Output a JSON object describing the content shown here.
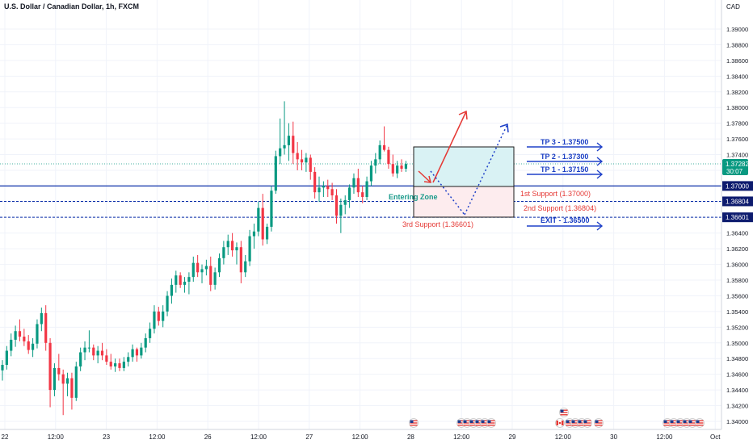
{
  "header": {
    "title": "U.S. Dollar / Canadian Dollar, 1h, FXCM"
  },
  "colors": {
    "up": "#089981",
    "down": "#f23645",
    "level_line": "#0d2fa8",
    "level_badge": "#0d1b6e",
    "price_badge": "#089981",
    "zone_fill": "#d9f2f4",
    "zone_fill_low": "#fdecee",
    "arrow_red": "#e53935",
    "arrow_blue": "#1e40c8",
    "text_green": "#1a9a8a",
    "text_red": "#e53935",
    "text_blue": "#1b3fc4"
  },
  "chart_data": {
    "type": "candlestick",
    "title": "U.S. Dollar / Canadian Dollar, 1h, FXCM",
    "y_axis_label": "CAD",
    "ylim": [
      1.3385,
      1.3925
    ],
    "y_ticks": [
      "1.39000",
      "1.38800",
      "1.38600",
      "1.38400",
      "1.38200",
      "1.38000",
      "1.37800",
      "1.37600",
      "1.37400",
      "1.37200",
      "1.37000",
      "1.36800",
      "1.36600",
      "1.36400",
      "1.36200",
      "1.36000",
      "1.35800",
      "1.35600",
      "1.35400",
      "1.35200",
      "1.35000",
      "1.34800",
      "1.34600",
      "1.34400",
      "1.34200",
      "1.34000"
    ],
    "x_ticks": [
      "22",
      "12:00",
      "23",
      "12:00",
      "26",
      "12:00",
      "27",
      "12:00",
      "28",
      "12:00",
      "29",
      "12:00",
      "30",
      "12:00",
      "Oct"
    ],
    "current_price": {
      "value": "1.37282",
      "countdown": "30:07"
    },
    "levels": [
      {
        "value": 1.37,
        "label": "1.37000",
        "style": "solid"
      },
      {
        "value": 1.36804,
        "label": "1.36804",
        "style": "dashed"
      },
      {
        "value": 1.36601,
        "label": "1.36601",
        "style": "dashed"
      }
    ],
    "annotations": {
      "entering_zone": "Entering Zone",
      "support_1": "1st Support (1.37000)",
      "support_2": "2nd Support (1.36804)",
      "support_3": "3rd Support (1.36601)",
      "tp3": "TP 3 - 1.37500",
      "tp2": "TP 2 - 1.37300",
      "tp1": "TP 1 - 1.37150",
      "exit": "EXIT - 1.36500"
    },
    "candles": [
      [
        1.3465,
        1.3478,
        1.3452,
        1.3472
      ],
      [
        1.3472,
        1.3496,
        1.3466,
        1.349
      ],
      [
        1.349,
        1.3512,
        1.3483,
        1.3504
      ],
      [
        1.3504,
        1.3522,
        1.3495,
        1.3515
      ],
      [
        1.3515,
        1.353,
        1.3502,
        1.3508
      ],
      [
        1.3508,
        1.3518,
        1.3496,
        1.3502
      ],
      [
        1.3502,
        1.351,
        1.3486,
        1.3491
      ],
      [
        1.3491,
        1.3506,
        1.3482,
        1.3499
      ],
      [
        1.3499,
        1.353,
        1.3493,
        1.3524
      ],
      [
        1.3524,
        1.3545,
        1.3515,
        1.3538
      ],
      [
        1.3538,
        1.3548,
        1.349,
        1.35
      ],
      [
        1.35,
        1.3506,
        1.3418,
        1.344
      ],
      [
        1.344,
        1.3474,
        1.3432,
        1.3468
      ],
      [
        1.3468,
        1.3486,
        1.3452,
        1.346
      ],
      [
        1.346,
        1.3466,
        1.3408,
        1.3448
      ],
      [
        1.3448,
        1.3462,
        1.3432,
        1.3455
      ],
      [
        1.3455,
        1.3462,
        1.3415,
        1.343
      ],
      [
        1.343,
        1.3476,
        1.3426,
        1.347
      ],
      [
        1.347,
        1.3494,
        1.3464,
        1.3488
      ],
      [
        1.3488,
        1.3502,
        1.3478,
        1.3494
      ],
      [
        1.3494,
        1.3516,
        1.3488,
        1.3494
      ],
      [
        1.3494,
        1.3498,
        1.3478,
        1.3484
      ],
      [
        1.3484,
        1.3496,
        1.3474,
        1.349
      ],
      [
        1.349,
        1.35,
        1.3478,
        1.3484
      ],
      [
        1.3484,
        1.3492,
        1.3472,
        1.3476
      ],
      [
        1.3476,
        1.3486,
        1.3466,
        1.347
      ],
      [
        1.347,
        1.348,
        1.3463,
        1.3474
      ],
      [
        1.3474,
        1.348,
        1.3464,
        1.3468
      ],
      [
        1.3468,
        1.3482,
        1.3464,
        1.3476
      ],
      [
        1.3476,
        1.3488,
        1.347,
        1.3482
      ],
      [
        1.3482,
        1.3498,
        1.3476,
        1.3492
      ],
      [
        1.3492,
        1.3494,
        1.3476,
        1.3484
      ],
      [
        1.3484,
        1.35,
        1.348,
        1.3494
      ],
      [
        1.3494,
        1.3512,
        1.3488,
        1.3506
      ],
      [
        1.3506,
        1.3526,
        1.35,
        1.3518
      ],
      [
        1.3518,
        1.3548,
        1.3512,
        1.354
      ],
      [
        1.354,
        1.3546,
        1.3522,
        1.3528
      ],
      [
        1.3528,
        1.3548,
        1.352,
        1.354
      ],
      [
        1.354,
        1.3566,
        1.3534,
        1.356
      ],
      [
        1.356,
        1.3582,
        1.355,
        1.3574
      ],
      [
        1.3574,
        1.3592,
        1.3564,
        1.3586
      ],
      [
        1.3586,
        1.359,
        1.357,
        1.3574
      ],
      [
        1.3574,
        1.3584,
        1.3564,
        1.3578
      ],
      [
        1.3578,
        1.359,
        1.3562,
        1.3584
      ],
      [
        1.3584,
        1.361,
        1.3578,
        1.3602
      ],
      [
        1.3602,
        1.3612,
        1.3584,
        1.359
      ],
      [
        1.359,
        1.36,
        1.3576,
        1.3594
      ],
      [
        1.3594,
        1.3606,
        1.3586,
        1.3598
      ],
      [
        1.3598,
        1.361,
        1.3566,
        1.3574
      ],
      [
        1.3574,
        1.3596,
        1.3568,
        1.359
      ],
      [
        1.359,
        1.3614,
        1.3584,
        1.3608
      ],
      [
        1.3608,
        1.363,
        1.36,
        1.3622
      ],
      [
        1.3622,
        1.3638,
        1.3612,
        1.363
      ],
      [
        1.363,
        1.364,
        1.361,
        1.3618
      ],
      [
        1.3618,
        1.3628,
        1.36,
        1.3622
      ],
      [
        1.3622,
        1.363,
        1.3576,
        1.359
      ],
      [
        1.359,
        1.3612,
        1.3584,
        1.3604
      ],
      [
        1.3604,
        1.3644,
        1.3598,
        1.3636
      ],
      [
        1.3636,
        1.3652,
        1.362,
        1.3642
      ],
      [
        1.3642,
        1.368,
        1.3636,
        1.3672
      ],
      [
        1.3672,
        1.369,
        1.3624,
        1.3632
      ],
      [
        1.3632,
        1.3652,
        1.3626,
        1.3648
      ],
      [
        1.3648,
        1.37,
        1.3642,
        1.3694
      ],
      [
        1.3694,
        1.3745,
        1.369,
        1.3738
      ],
      [
        1.3738,
        1.3786,
        1.3728,
        1.3748
      ],
      [
        1.3748,
        1.3808,
        1.374,
        1.3752
      ],
      [
        1.3752,
        1.378,
        1.3732,
        1.3764
      ],
      [
        1.3764,
        1.3782,
        1.3728,
        1.3742
      ],
      [
        1.3742,
        1.3756,
        1.372,
        1.3734
      ],
      [
        1.3734,
        1.3746,
        1.372,
        1.373
      ],
      [
        1.373,
        1.3742,
        1.3718,
        1.3736
      ],
      [
        1.3736,
        1.374,
        1.3708,
        1.3718
      ],
      [
        1.3718,
        1.3724,
        1.3684,
        1.3692
      ],
      [
        1.3692,
        1.3712,
        1.368,
        1.3698
      ],
      [
        1.3698,
        1.3706,
        1.3686,
        1.37
      ],
      [
        1.37,
        1.3708,
        1.3686,
        1.3696
      ],
      [
        1.3696,
        1.3704,
        1.3682,
        1.3688
      ],
      [
        1.3688,
        1.3696,
        1.3652,
        1.3662
      ],
      [
        1.3662,
        1.3684,
        1.364,
        1.3676
      ],
      [
        1.3676,
        1.3688,
        1.3664,
        1.3682
      ],
      [
        1.3682,
        1.3702,
        1.3672,
        1.3698
      ],
      [
        1.3698,
        1.3716,
        1.369,
        1.371
      ],
      [
        1.371,
        1.3722,
        1.3686,
        1.3692
      ],
      [
        1.3692,
        1.37,
        1.3678,
        1.3686
      ],
      [
        1.3686,
        1.3712,
        1.3682,
        1.3706
      ],
      [
        1.3706,
        1.3732,
        1.37,
        1.3726
      ],
      [
        1.3726,
        1.3742,
        1.3716,
        1.3734
      ],
      [
        1.3734,
        1.3758,
        1.3728,
        1.3752
      ],
      [
        1.3752,
        1.3776,
        1.3744,
        1.3746
      ],
      [
        1.3746,
        1.375,
        1.3722,
        1.3728
      ],
      [
        1.3728,
        1.374,
        1.3712,
        1.3716
      ],
      [
        1.3716,
        1.3732,
        1.371,
        1.3726
      ],
      [
        1.3726,
        1.3734,
        1.3718,
        1.3722
      ],
      [
        1.3722,
        1.3732,
        1.3718,
        1.3728
      ]
    ]
  },
  "event_icons": [
    {
      "name": "us-flag-icon"
    },
    {
      "name": "us-flag-icon"
    },
    {
      "name": "ca-flag-icon"
    },
    {
      "name": "us-flag-icon"
    }
  ]
}
